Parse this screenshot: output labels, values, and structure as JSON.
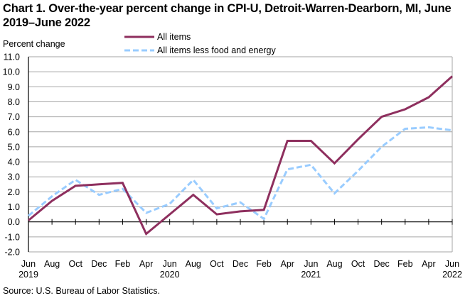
{
  "chart_data": {
    "type": "line",
    "title": "Chart 1. Over-the-year percent change in CPI-U, Detroit-Warren-Dearborn, MI, June 2019–June 2022",
    "ylabel": "Percent change",
    "xlabel": "",
    "ylim": [
      -2.0,
      11.0
    ],
    "ytick_step": 1.0,
    "yticks": [
      "11.0",
      "10.0",
      "9.0",
      "8.0",
      "7.0",
      "6.0",
      "5.0",
      "4.0",
      "3.0",
      "2.0",
      "1.0",
      "0.0",
      "-1.0",
      "-2.0"
    ],
    "grid": true,
    "legend_position": "top-center",
    "x": [
      "Jun 2019",
      "Aug 2019",
      "Oct 2019",
      "Dec 2019",
      "Feb 2020",
      "Apr 2020",
      "Jun 2020",
      "Aug 2020",
      "Oct 2020",
      "Dec 2020",
      "Feb 2021",
      "Apr 2021",
      "Jun 2021",
      "Aug 2021",
      "Oct 2021",
      "Dec 2021",
      "Feb 2022",
      "Apr 2022",
      "Jun 2022"
    ],
    "xtick_labels": [
      {
        "month": "Jun",
        "year": "2019"
      },
      {
        "month": "Aug",
        "year": ""
      },
      {
        "month": "Oct",
        "year": ""
      },
      {
        "month": "Dec",
        "year": ""
      },
      {
        "month": "Feb",
        "year": ""
      },
      {
        "month": "Apr",
        "year": ""
      },
      {
        "month": "Jun",
        "year": "2020"
      },
      {
        "month": "Aug",
        "year": ""
      },
      {
        "month": "Oct",
        "year": ""
      },
      {
        "month": "Dec",
        "year": ""
      },
      {
        "month": "Feb",
        "year": ""
      },
      {
        "month": "Apr",
        "year": ""
      },
      {
        "month": "Jun",
        "year": "2021"
      },
      {
        "month": "Aug",
        "year": ""
      },
      {
        "month": "Oct",
        "year": ""
      },
      {
        "month": "Dec",
        "year": ""
      },
      {
        "month": "Feb",
        "year": ""
      },
      {
        "month": "Apr",
        "year": ""
      },
      {
        "month": "Jun",
        "year": "2022"
      }
    ],
    "series": [
      {
        "name": "All items",
        "color": "#8E2F5E",
        "dash": "solid",
        "values": [
          0.1,
          1.4,
          2.4,
          2.5,
          2.6,
          -0.8,
          0.5,
          1.8,
          0.5,
          0.7,
          0.8,
          5.4,
          5.4,
          3.9,
          5.5,
          7.0,
          7.5,
          8.3,
          9.7
        ]
      },
      {
        "name": "All items less food and energy",
        "color": "#99CCFF",
        "dash": "dashed",
        "values": [
          0.4,
          1.7,
          2.8,
          1.8,
          2.2,
          0.6,
          1.2,
          2.8,
          0.9,
          1.3,
          0.2,
          3.5,
          3.8,
          1.9,
          3.4,
          5.0,
          6.2,
          6.3,
          6.1
        ]
      }
    ]
  },
  "source": "Source: U.S. Bureau of Labor Statistics."
}
